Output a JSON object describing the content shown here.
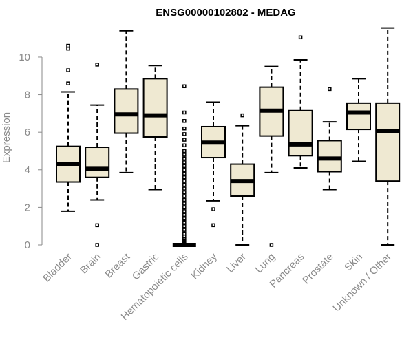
{
  "chart_data": {
    "type": "boxplot",
    "title": "ENSG00000102802 - MEDAG",
    "xlabel": "",
    "ylabel": "Expression",
    "ylim": [
      0,
      11.5
    ],
    "yticks": [
      0,
      2,
      4,
      6,
      8,
      10
    ],
    "box_fill": "#efe9d2",
    "categories": [
      "Bladder",
      "Brain",
      "Breast",
      "Gastric",
      "Hematopoietic cells",
      "Kidney",
      "Liver",
      "Lung",
      "Pancreas",
      "Prostate",
      "Skin",
      "Unknown / Other"
    ],
    "boxes": [
      {
        "q1": 3.35,
        "median": 4.3,
        "q3": 5.25,
        "whislo": 1.8,
        "whishi": 8.15,
        "outliers": [
          8.6,
          9.3,
          10.45,
          10.6
        ]
      },
      {
        "q1": 3.6,
        "median": 4.05,
        "q3": 5.2,
        "whislo": 2.4,
        "whishi": 7.45,
        "outliers": [
          0.0,
          1.05,
          9.6
        ]
      },
      {
        "q1": 5.95,
        "median": 6.95,
        "q3": 8.3,
        "whislo": 3.85,
        "whishi": 11.4,
        "outliers": []
      },
      {
        "q1": 5.75,
        "median": 6.9,
        "q3": 8.85,
        "whislo": 2.95,
        "whishi": 9.55,
        "outliers": []
      },
      {
        "q1": 0.0,
        "median": 0.0,
        "q3": 0.0,
        "whislo": 0.0,
        "whishi": 0.0,
        "outliers": [
          0.1,
          0.2,
          0.3,
          0.45,
          0.6,
          0.8,
          1.0,
          1.2,
          1.4,
          1.6,
          1.8,
          2.0,
          2.2,
          2.4,
          2.6,
          2.8,
          3.0,
          3.2,
          3.4,
          3.6,
          3.8,
          4.0,
          4.2,
          4.4,
          4.6,
          4.8,
          5.0,
          5.3,
          5.6,
          5.9,
          6.2,
          6.6,
          7.05,
          8.45
        ]
      },
      {
        "q1": 4.65,
        "median": 5.45,
        "q3": 6.3,
        "whislo": 2.35,
        "whishi": 7.6,
        "outliers": [
          1.05,
          1.9
        ]
      },
      {
        "q1": 2.6,
        "median": 3.4,
        "q3": 4.3,
        "whislo": 0.0,
        "whishi": 6.35,
        "outliers": [
          6.9
        ]
      },
      {
        "q1": 5.8,
        "median": 7.15,
        "q3": 8.4,
        "whislo": 3.85,
        "whishi": 9.5,
        "outliers": [
          0.0
        ]
      },
      {
        "q1": 4.75,
        "median": 5.35,
        "q3": 7.15,
        "whislo": 4.1,
        "whishi": 9.85,
        "outliers": [
          11.05
        ]
      },
      {
        "q1": 3.9,
        "median": 4.6,
        "q3": 5.55,
        "whislo": 2.95,
        "whishi": 6.55,
        "outliers": [
          8.3
        ]
      },
      {
        "q1": 6.15,
        "median": 7.05,
        "q3": 7.55,
        "whislo": 4.45,
        "whishi": 8.85,
        "outliers": []
      },
      {
        "q1": 3.4,
        "median": 6.05,
        "q3": 7.55,
        "whislo": 0.0,
        "whishi": 11.55,
        "outliers": []
      }
    ]
  }
}
